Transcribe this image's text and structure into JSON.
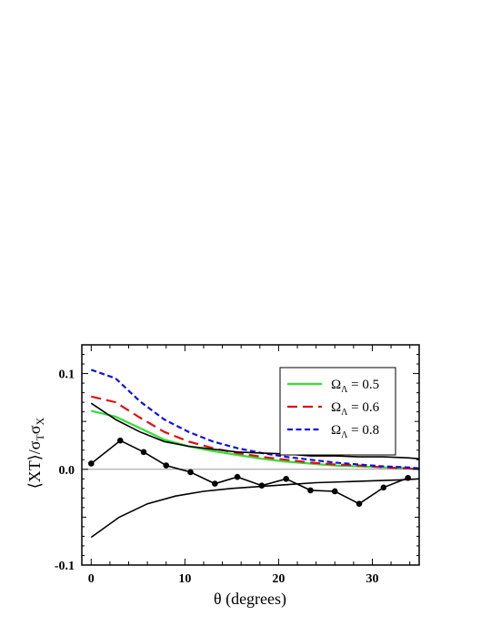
{
  "chart_data": {
    "type": "line",
    "xlabel": "θ (degrees)",
    "ylabel": "⟨XT⟩/σTσX",
    "xlim": [
      -1,
      35
    ],
    "ylim": [
      -0.1,
      0.13
    ],
    "x_ticks": [
      0,
      10,
      20,
      30
    ],
    "x_tick_labels": [
      "0",
      "10",
      "20",
      "30"
    ],
    "y_ticks": [
      -0.1,
      0.0,
      0.1
    ],
    "y_tick_labels": [
      "-0.1",
      "0.0",
      "0.1"
    ],
    "zero_line": true,
    "grid": false,
    "legend_position": "top-right",
    "series": [
      {
        "name": "ΩΛ = 0.5",
        "legend_label": "Ω",
        "legend_sub": "Λ",
        "legend_value": " = 0.5",
        "color": "#33dd33",
        "style": "solid",
        "x": [
          0,
          2.6,
          5.2,
          7.8,
          10.4,
          13,
          15.6,
          18.2,
          20.8,
          23.4,
          26,
          28.6,
          31.2,
          33.8,
          35
        ],
        "y": [
          0.061,
          0.055,
          0.043,
          0.031,
          0.024,
          0.019,
          0.015,
          0.011,
          0.008,
          0.006,
          0.004,
          0.003,
          0.002,
          0.001,
          0.0
        ]
      },
      {
        "name": "ΩΛ = 0.6",
        "legend_label": "Ω",
        "legend_sub": "Λ",
        "legend_value": " = 0.6",
        "color": "#dd1111",
        "style": "long-dash",
        "x": [
          0,
          2.6,
          5.2,
          7.8,
          10.4,
          13,
          15.6,
          18.2,
          20.8,
          23.4,
          26,
          28.6,
          31.2,
          33.8,
          35
        ],
        "y": [
          0.076,
          0.07,
          0.054,
          0.039,
          0.029,
          0.022,
          0.017,
          0.013,
          0.01,
          0.007,
          0.005,
          0.004,
          0.002,
          0.001,
          0.0
        ]
      },
      {
        "name": "ΩΛ = 0.8",
        "legend_label": "Ω",
        "legend_sub": "Λ",
        "legend_value": " = 0.8",
        "color": "#1111dd",
        "style": "short-dash",
        "x": [
          0,
          2.6,
          5.2,
          7.8,
          10.4,
          13,
          15.6,
          18.2,
          20.8,
          23.4,
          26,
          28.6,
          31.2,
          33.8,
          35
        ],
        "y": [
          0.104,
          0.095,
          0.071,
          0.052,
          0.039,
          0.029,
          0.022,
          0.017,
          0.013,
          0.01,
          0.007,
          0.005,
          0.003,
          0.002,
          0.001
        ]
      },
      {
        "name": "data",
        "color": "#000000",
        "style": "solid-markers",
        "x": [
          0,
          3.1,
          5.6,
          8,
          10.6,
          13.2,
          15.6,
          18.2,
          20.8,
          23.4,
          26,
          28.6,
          31.2,
          33.8
        ],
        "y": [
          0.006,
          0.03,
          0.018,
          0.004,
          -0.003,
          -0.015,
          -0.008,
          -0.017,
          -0.01,
          -0.022,
          -0.023,
          -0.036,
          -0.019,
          -0.009
        ]
      },
      {
        "name": "upper envelope",
        "color": "#000000",
        "style": "solid",
        "x": [
          0,
          2.6,
          5.2,
          7.8,
          10.4,
          13,
          15.6,
          18.2,
          20.8,
          23.4,
          26,
          28.6,
          31.2,
          33.8,
          35
        ],
        "y": [
          0.069,
          0.052,
          0.039,
          0.029,
          0.024,
          0.021,
          0.018,
          0.017,
          0.016,
          0.014,
          0.014,
          0.013,
          0.013,
          0.012,
          0.011
        ]
      },
      {
        "name": "lower envelope",
        "color": "#000000",
        "style": "solid",
        "x": [
          0,
          3,
          6,
          9,
          12,
          15,
          18,
          21,
          24,
          27,
          30,
          33,
          35
        ],
        "y": [
          -0.071,
          -0.05,
          -0.036,
          -0.028,
          -0.023,
          -0.02,
          -0.018,
          -0.016,
          -0.014,
          -0.013,
          -0.012,
          -0.011,
          -0.01
        ]
      }
    ]
  }
}
